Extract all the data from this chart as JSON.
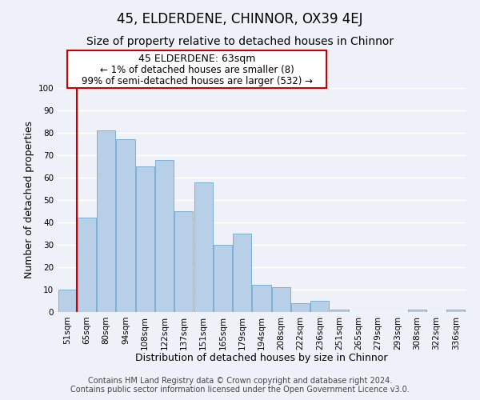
{
  "title": "45, ELDERDENE, CHINNOR, OX39 4EJ",
  "subtitle": "Size of property relative to detached houses in Chinnor",
  "xlabel": "Distribution of detached houses by size in Chinnor",
  "ylabel": "Number of detached properties",
  "footer_line1": "Contains HM Land Registry data © Crown copyright and database right 2024.",
  "footer_line2": "Contains public sector information licensed under the Open Government Licence v3.0.",
  "bin_labels": [
    "51sqm",
    "65sqm",
    "80sqm",
    "94sqm",
    "108sqm",
    "122sqm",
    "137sqm",
    "151sqm",
    "165sqm",
    "179sqm",
    "194sqm",
    "208sqm",
    "222sqm",
    "236sqm",
    "251sqm",
    "265sqm",
    "279sqm",
    "293sqm",
    "308sqm",
    "322sqm",
    "336sqm"
  ],
  "bar_heights": [
    10,
    42,
    81,
    77,
    65,
    68,
    45,
    58,
    30,
    35,
    12,
    11,
    4,
    5,
    1,
    0,
    0,
    0,
    1,
    0,
    1
  ],
  "bar_color": "#b8cfe8",
  "bar_edge_color": "#7aafd4",
  "highlight_bar_index": 1,
  "highlight_color": "#cc0000",
  "annotation_title": "45 ELDERDENE: 63sqm",
  "annotation_line1": "← 1% of detached houses are smaller (8)",
  "annotation_line2": "99% of semi-detached houses are larger (532) →",
  "annotation_box_facecolor": "#ffffff",
  "annotation_box_edgecolor": "#cc0000",
  "ylim": [
    0,
    100
  ],
  "yticks": [
    0,
    10,
    20,
    30,
    40,
    50,
    60,
    70,
    80,
    90,
    100
  ],
  "background_color": "#eef2f8",
  "plot_bg_color": "#eef2f8",
  "grid_color": "#ffffff",
  "title_fontsize": 12,
  "subtitle_fontsize": 10,
  "axis_label_fontsize": 9,
  "tick_fontsize": 7.5,
  "annotation_title_fontsize": 9,
  "annotation_text_fontsize": 8.5,
  "footer_fontsize": 7
}
